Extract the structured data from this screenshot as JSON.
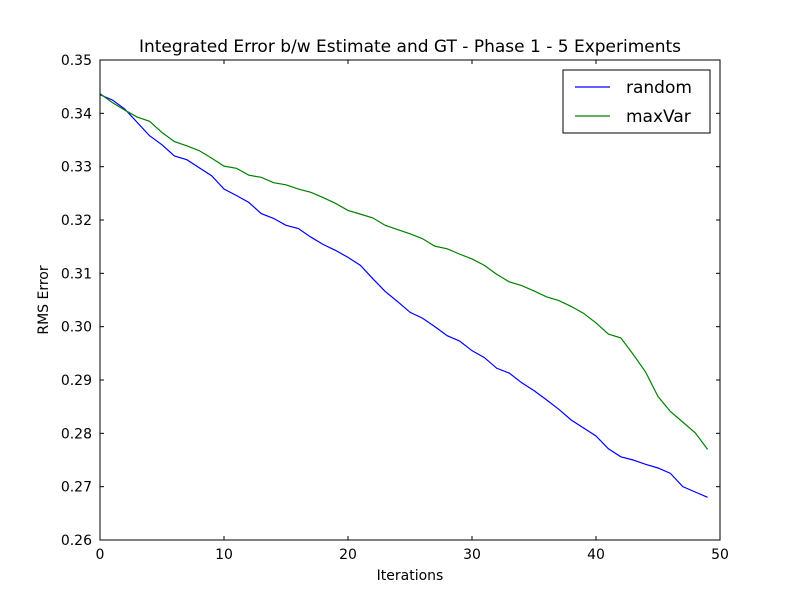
{
  "chart_data": {
    "type": "line",
    "title": "Integrated Error b/w Estimate and GT - Phase 1 - 5 Experiments",
    "xlabel": "Iterations",
    "ylabel": "RMS Error",
    "xlim": [
      0,
      50
    ],
    "ylim": [
      0.26,
      0.35
    ],
    "xticks": [
      "0",
      "10",
      "20",
      "30",
      "40",
      "50"
    ],
    "yticks": [
      "0.26",
      "0.27",
      "0.28",
      "0.29",
      "0.30",
      "0.31",
      "0.32",
      "0.33",
      "0.34",
      "0.35"
    ],
    "grid": false,
    "legend_position": "top-right",
    "x": [
      0,
      1,
      2,
      3,
      4,
      5,
      6,
      7,
      8,
      9,
      10,
      11,
      12,
      13,
      14,
      15,
      16,
      17,
      18,
      19,
      20,
      21,
      22,
      23,
      24,
      25,
      26,
      27,
      28,
      29,
      30,
      31,
      32,
      33,
      34,
      35,
      36,
      37,
      38,
      39,
      40,
      41,
      42,
      43,
      44,
      45,
      46,
      47,
      48,
      49
    ],
    "series": [
      {
        "name": "random",
        "color": "#0000ff",
        "values": [
          0.3435,
          0.3425,
          0.3408,
          0.3383,
          0.3358,
          0.3341,
          0.332,
          0.3313,
          0.3298,
          0.3283,
          0.3258,
          0.3246,
          0.3233,
          0.3212,
          0.3203,
          0.319,
          0.3184,
          0.3168,
          0.3154,
          0.3143,
          0.313,
          0.3115,
          0.309,
          0.3066,
          0.3047,
          0.3027,
          0.3016,
          0.3,
          0.2983,
          0.2973,
          0.2955,
          0.2942,
          0.2922,
          0.2913,
          0.2895,
          0.288,
          0.2863,
          0.2845,
          0.2825,
          0.281,
          0.2795,
          0.2771,
          0.2756,
          0.275,
          0.2742,
          0.2735,
          0.2725,
          0.27,
          0.269,
          0.268
        ]
      },
      {
        "name": "maxVar",
        "color": "#008000",
        "values": [
          0.3437,
          0.342,
          0.3406,
          0.3393,
          0.3385,
          0.3364,
          0.3347,
          0.3339,
          0.333,
          0.3316,
          0.3301,
          0.3297,
          0.3284,
          0.328,
          0.327,
          0.3266,
          0.3258,
          0.3252,
          0.3242,
          0.3231,
          0.3218,
          0.3211,
          0.3204,
          0.319,
          0.3182,
          0.3174,
          0.3165,
          0.3151,
          0.3146,
          0.3136,
          0.3127,
          0.3115,
          0.3098,
          0.3084,
          0.3077,
          0.3067,
          0.3056,
          0.3049,
          0.3038,
          0.3025,
          0.3007,
          0.2986,
          0.2979,
          0.2948,
          0.2915,
          0.2869,
          0.2841,
          0.2821,
          0.2801,
          0.277
        ]
      }
    ]
  }
}
